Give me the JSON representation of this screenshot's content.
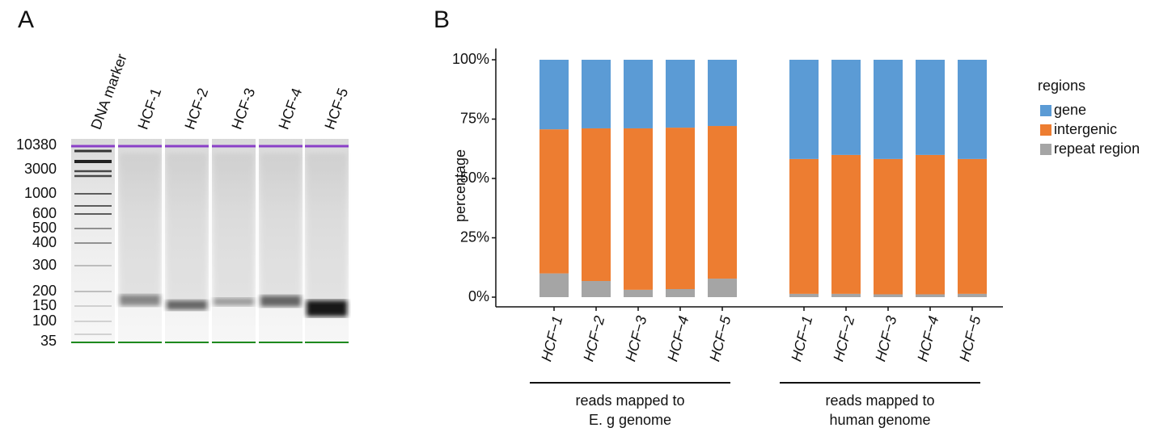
{
  "panel_labels": [
    "A",
    "B"
  ],
  "gel": {
    "lanes": [
      "DNA marker",
      "HCF-1",
      "HCF-2",
      "HCF-3",
      "HCF-4",
      "HCF-5"
    ],
    "marker_labels": [
      "10380",
      "3000",
      "1000",
      "600",
      "500",
      "400",
      "300",
      "200",
      "150",
      "100",
      "35"
    ]
  },
  "chart_data": {
    "type": "bar",
    "stacked": true,
    "ylabel": "percentage",
    "ylim": [
      0,
      100
    ],
    "yticks": [
      {
        "value": 0,
        "label": "0%"
      },
      {
        "value": 25,
        "label": "25%"
      },
      {
        "value": 50,
        "label": "50%"
      },
      {
        "value": 75,
        "label": "75%"
      },
      {
        "value": 100,
        "label": "100%"
      }
    ],
    "categories": [
      [
        "HCF−1",
        "HCF−2",
        "HCF−3",
        "HCF−4",
        "HCF−5"
      ],
      [
        "HCF−1",
        "HCF−2",
        "HCF−3",
        "HCF−4",
        "HCF−5"
      ]
    ],
    "group_labels": [
      [
        "reads mapped to",
        "E. g genome"
      ],
      [
        "reads mapped to",
        "human genome"
      ]
    ],
    "legend_title": "regions",
    "legend": "right",
    "series": [
      {
        "name": "gene",
        "color": "#5b9bd5",
        "values": [
          [
            29.3,
            28.9,
            28.9,
            28.6,
            27.9
          ],
          [
            41.8,
            40.1,
            41.8,
            40.1,
            41.8
          ]
        ]
      },
      {
        "name": "intergenic",
        "color": "#ed7d31",
        "values": [
          [
            60.7,
            64.3,
            68.0,
            68.0,
            64.3
          ],
          [
            56.8,
            58.5,
            57.0,
            58.7,
            56.8
          ]
        ]
      },
      {
        "name": "repeat region",
        "color": "#a5a5a5",
        "values": [
          [
            10.0,
            6.8,
            3.1,
            3.4,
            7.8
          ],
          [
            1.4,
            1.4,
            1.2,
            1.2,
            1.4
          ]
        ]
      }
    ]
  }
}
